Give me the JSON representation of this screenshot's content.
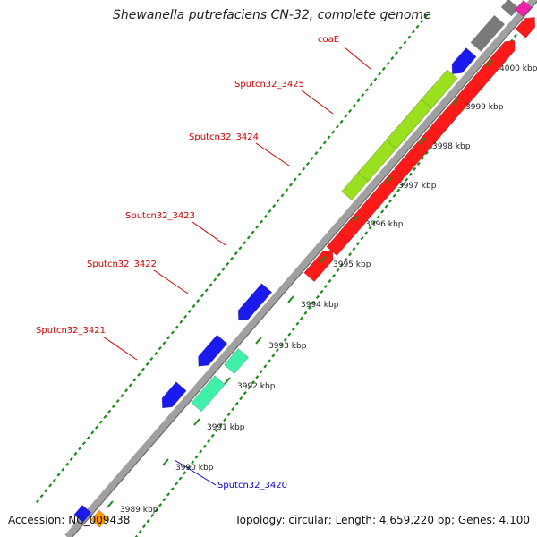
{
  "title": "Shewanella putrefaciens CN-32, complete genome",
  "footer": {
    "accession": "Accession: NC_009438",
    "topology": "Topology: circular; Length: 4,659,220 bp; Genes: 4,100"
  },
  "colors": {
    "backbone": "#a0a0a0",
    "tick": "#1a8c1a",
    "forward_label": "#cc0000",
    "reverse_label": "#0000cc",
    "red_gene": "#ff1a1a",
    "blue_gene": "#1a1aee",
    "lime_gene": "#9ae01e",
    "teal_gene": "#3ef0a8",
    "gray_gene": "#7a7a7a",
    "pink_gene": "#ee22aa",
    "orange_gene": "#ff9900"
  },
  "scale_labels": [
    "3989 kbp",
    "3990 kbp",
    "3991 kbp",
    "3992 kbp",
    "3993 kbp",
    "3994 kbp",
    "3995 kbp",
    "3996 kbp",
    "3997 kbp",
    "3998 kbp",
    "3999 kbp",
    "4000 kbp"
  ],
  "gene_labels": [
    {
      "name": "coaE",
      "strand": "forward"
    },
    {
      "name": "Sputcn32_3425",
      "strand": "forward"
    },
    {
      "name": "Sputcn32_3424",
      "strand": "forward"
    },
    {
      "name": "Sputcn32_3423",
      "strand": "forward"
    },
    {
      "name": "Sputcn32_3422",
      "strand": "forward"
    },
    {
      "name": "Sputcn32_3421",
      "strand": "forward"
    },
    {
      "name": "Sputcn32_3420",
      "strand": "reverse"
    }
  ]
}
